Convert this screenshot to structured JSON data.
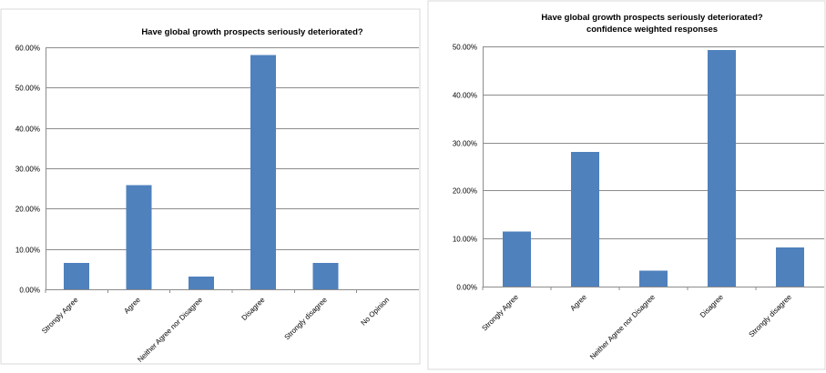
{
  "chart_data": [
    {
      "type": "bar",
      "title": "Have global growth prospects seriously deteriorated?",
      "subtitle": "",
      "categories": [
        "Strongly Agree",
        "Agree",
        "Neither Agree nor Disagree",
        "Disagree",
        "Strongly disagree",
        "No Opinion"
      ],
      "values": [
        6.5,
        25.8,
        3.2,
        58.1,
        6.5,
        0
      ],
      "ylim": [
        0,
        60
      ],
      "yticks": [
        "0.00%",
        "10.00%",
        "20.00%",
        "30.00%",
        "40.00%",
        "50.00%",
        "60.00%"
      ],
      "grid": true,
      "legend": "none",
      "bar_color": "#4f81bd"
    },
    {
      "type": "bar",
      "title": "Have global growth prospects seriously deteriorated?",
      "subtitle": "confidence weighted responses",
      "categories": [
        "Strongly Agree",
        "Agree",
        "Neither Agree nor Disagree",
        "Disagree",
        "Strongly disagree"
      ],
      "values": [
        11.5,
        28.0,
        3.3,
        49.2,
        8.1
      ],
      "ylim": [
        0,
        50
      ],
      "yticks": [
        "0.00%",
        "10.00%",
        "20.00%",
        "30.00%",
        "40.00%",
        "50.00%"
      ],
      "grid": true,
      "legend": "none",
      "bar_color": "#4f81bd"
    }
  ]
}
